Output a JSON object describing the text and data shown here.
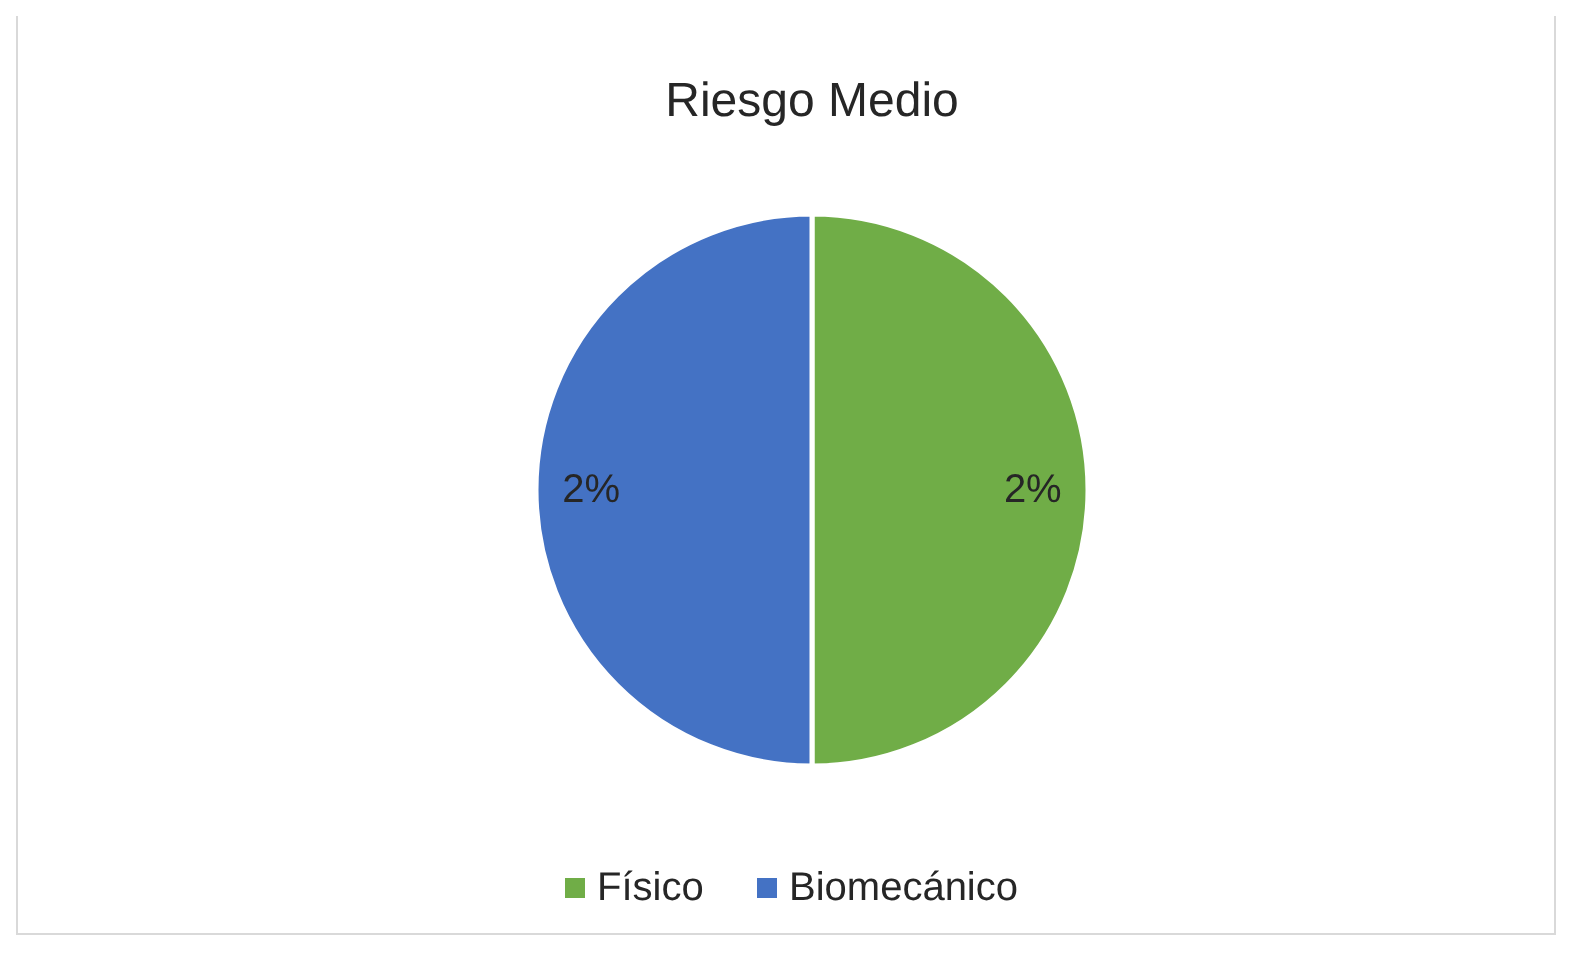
{
  "chart_data": {
    "type": "pie",
    "title": "Riesgo Medio",
    "categories": [
      "Físico",
      "Biomecánico"
    ],
    "values": [
      2,
      2
    ],
    "colors": [
      "#70ad47",
      "#4472c4"
    ],
    "value_labels": [
      "2%",
      "2%"
    ],
    "legend": "bottom"
  }
}
